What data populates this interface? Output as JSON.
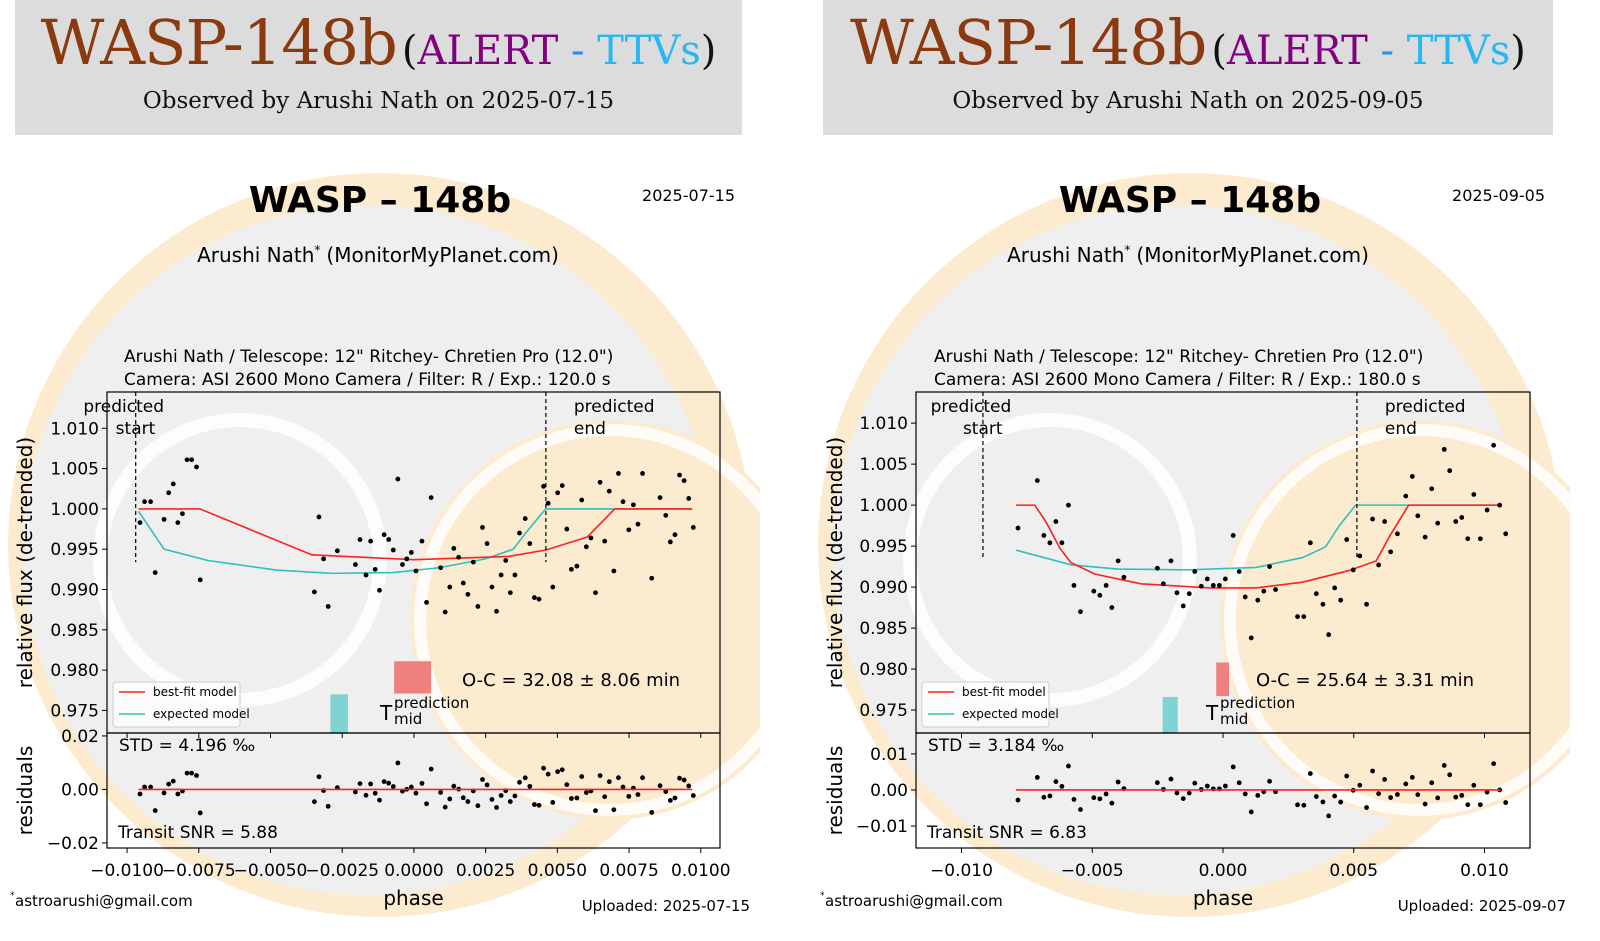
{
  "colors": {
    "best_fit": "#ff2020",
    "expected": "#2ebfbf",
    "prediction_bar": "#f08080",
    "tmid_bar": "#7fd3d3",
    "title_planet": "#8b3a0f",
    "title_alert": "#800080",
    "title_ttvs": "#29b6f6",
    "header_bg": "#dcdcdc",
    "watermark": "#fdebd0"
  },
  "panels": [
    {
      "header": {
        "planet": "WASP-148b",
        "open": "(",
        "alert": "ALERT",
        "dash": " - ",
        "ttvs": "TTVs",
        "close": ")",
        "observed": "Observed by Arushi Nath on 2025-07-15"
      }
    },
    {
      "header": {
        "planet": "WASP-148b",
        "open": "(",
        "alert": "ALERT",
        "dash": " - ",
        "ttvs": "TTVs",
        "close": ")",
        "observed": "Observed by Arushi Nath on 2025-09-05"
      }
    }
  ],
  "chart_data": [
    {
      "type": "scatter",
      "title": "WASP – 148b",
      "date": "2025-07-15",
      "observer": "Arushi Nath",
      "observer_mark": "*",
      "site": "(MonitorMyPlanet.com)",
      "info_line1": "Arushi Nath / Telescope: 12\" Ritchey- Chretien Pro (12.0\")",
      "info_line2": "Camera: ASI 2600 Mono Camera / Filter: R / Exp.: 120.0 s",
      "xlabel": "phase",
      "ylabel": "relative flux (de-trended)",
      "residual_ylabel": "residuals",
      "xlim": [
        -0.0107,
        0.01067
      ],
      "ylim": [
        0.9722,
        1.0145
      ],
      "residual_ylim": [
        -0.0219,
        0.0211
      ],
      "xticks": [
        -0.01,
        -0.0075,
        -0.005,
        -0.0025,
        0,
        0.0025,
        0.005,
        0.0075,
        0.01
      ],
      "xtick_labels": [
        "−0.0100",
        "−0.0075",
        "−0.0050",
        "−0.0025",
        "0.0000",
        "0.0025",
        "0.0050",
        "0.0075",
        "0.0100"
      ],
      "yticks": [
        0.975,
        0.98,
        0.985,
        0.99,
        0.995,
        1.0,
        1.005,
        1.01
      ],
      "ytick_labels": [
        "0.975",
        "0.980",
        "0.985",
        "0.990",
        "0.995",
        "1.000",
        "1.005",
        "1.010"
      ],
      "residual_yticks": [
        -0.02,
        0,
        0.02
      ],
      "residual_ytick_labels": [
        "−0.02",
        "0.00",
        "0.02"
      ],
      "predicted_start": -0.0097,
      "predicted_end": 0.0046,
      "predicted_word": "predicted",
      "start_word": "start",
      "end_word": "end",
      "legend": {
        "best_fit": "best-fit model",
        "expected": "expected model",
        "placement": "lower-left"
      },
      "oc_text": "O-C = 32.08 ± 8.06 min",
      "tmid_T": "T",
      "tmid_sup": "prediction",
      "tmid_sub": "mid",
      "std_text": "STD = 4.196 ‰",
      "snr_text": "Transit SNR = 5.88",
      "email_mark": "*",
      "email": "astroarushi@gmail.com",
      "uploaded": "Uploaded: 2025-07-15",
      "prediction_bar": {
        "phase": [
          -0.00069,
          0.0006
        ],
        "flux": [
          0.9771,
          0.9811
        ]
      },
      "tmid_bar": {
        "phase": [
          -0.00291,
          -0.0023
        ],
        "flux": [
          0.9722,
          0.977
        ]
      },
      "best_fit": [
        [
          -0.0096,
          1.0
        ],
        [
          -0.00746,
          1.0
        ],
        [
          -0.00356,
          0.9943
        ],
        [
          0.0,
          0.9937
        ],
        [
          0.0033,
          0.9941
        ],
        [
          0.0046,
          0.9949
        ],
        [
          0.00604,
          0.9965
        ],
        [
          0.007,
          1.0
        ],
        [
          0.0097,
          1.0
        ]
      ],
      "expected": [
        [
          -0.0096,
          0.9997
        ],
        [
          -0.00871,
          0.995
        ],
        [
          -0.00718,
          0.9936
        ],
        [
          -0.00476,
          0.9924
        ],
        [
          -0.00283,
          0.992
        ],
        [
          -0.00073,
          0.9921
        ],
        [
          0.00088,
          0.9927
        ],
        [
          0.00249,
          0.9938
        ],
        [
          0.00346,
          0.995
        ],
        [
          0.00394,
          0.9972
        ],
        [
          0.00459,
          1.0
        ],
        [
          0.0097,
          1.0
        ]
      ],
      "points": [
        [
          -0.00955,
          0.9983
        ],
        [
          -0.00939,
          1.0009
        ],
        [
          -0.00918,
          1.0009
        ],
        [
          -0.00902,
          0.9921
        ],
        [
          -0.00871,
          0.9987
        ],
        [
          -0.00855,
          1.002
        ],
        [
          -0.00839,
          1.0031
        ],
        [
          -0.00823,
          0.9983
        ],
        [
          -0.00807,
          0.9994
        ],
        [
          -0.00791,
          1.0061
        ],
        [
          -0.00775,
          1.0061
        ],
        [
          -0.00758,
          1.0052
        ],
        [
          -0.00745,
          0.9912
        ],
        [
          -0.00347,
          0.9897
        ],
        [
          -0.00331,
          0.999
        ],
        [
          -0.00315,
          0.9938
        ],
        [
          -0.00299,
          0.9879
        ],
        [
          -0.00267,
          0.9948
        ],
        [
          -0.00204,
          0.9931
        ],
        [
          -0.00188,
          0.9962
        ],
        [
          -0.00167,
          0.9918
        ],
        [
          -0.00151,
          0.996
        ],
        [
          -0.00135,
          0.9925
        ],
        [
          -0.0012,
          0.9899
        ],
        [
          -0.00104,
          0.9968
        ],
        [
          -0.00088,
          0.9962
        ],
        [
          -0.00072,
          0.9949
        ],
        [
          -0.00056,
          1.0037
        ],
        [
          -0.0004,
          0.9931
        ],
        [
          -0.00025,
          0.9938
        ],
        [
          -9e-05,
          0.9946
        ],
        [
          7e-05,
          0.9923
        ],
        [
          0.00028,
          0.996
        ],
        [
          0.00044,
          0.9884
        ],
        [
          0.0006,
          1.0014
        ],
        [
          0.00093,
          0.9927
        ],
        [
          0.00109,
          0.9872
        ],
        [
          0.00125,
          0.9903
        ],
        [
          0.00139,
          0.9951
        ],
        [
          0.00156,
          0.994
        ],
        [
          0.00172,
          0.9908
        ],
        [
          0.00188,
          0.9894
        ],
        [
          0.00207,
          0.9934
        ],
        [
          0.00223,
          0.9879
        ],
        [
          0.00239,
          0.9977
        ],
        [
          0.00255,
          0.9957
        ],
        [
          0.00272,
          0.9903
        ],
        [
          0.00288,
          0.9873
        ],
        [
          0.00304,
          0.9918
        ],
        [
          0.0032,
          0.9936
        ],
        [
          0.00336,
          0.9896
        ],
        [
          0.00352,
          0.9918
        ],
        [
          0.00368,
          0.997
        ],
        [
          0.00388,
          0.9988
        ],
        [
          0.00404,
          0.9957
        ],
        [
          0.0042,
          0.989
        ],
        [
          0.00436,
          0.9888
        ],
        [
          0.00452,
          1.0028
        ],
        [
          0.00468,
          1.0007
        ],
        [
          0.00484,
          0.9903
        ],
        [
          0.00501,
          1.002
        ],
        [
          0.00517,
          1.0029
        ],
        [
          0.00533,
          0.9975
        ],
        [
          0.00549,
          0.9925
        ],
        [
          0.00568,
          0.9929
        ],
        [
          0.00585,
          1.0011
        ],
        [
          0.00601,
          0.9953
        ],
        [
          0.00617,
          0.9964
        ],
        [
          0.00633,
          0.9896
        ],
        [
          0.00649,
          1.0033
        ],
        [
          0.00665,
          0.996
        ],
        [
          0.00681,
          1.0022
        ],
        [
          0.00697,
          0.9923
        ],
        [
          0.00713,
          1.0044
        ],
        [
          0.00729,
          1.0009
        ],
        [
          0.00749,
          0.9974
        ],
        [
          0.00765,
          1.0005
        ],
        [
          0.00781,
          0.9981
        ],
        [
          0.00797,
          1.0044
        ],
        [
          0.00829,
          0.9914
        ],
        [
          0.00858,
          1.0014
        ],
        [
          0.00878,
          0.9992
        ],
        [
          0.00894,
          0.9959
        ],
        [
          0.0091,
          0.9968
        ],
        [
          0.00926,
          1.0042
        ],
        [
          0.00942,
          1.0035
        ],
        [
          0.00958,
          1.0013
        ],
        [
          0.00974,
          0.9977
        ]
      ]
    },
    {
      "type": "scatter",
      "title": "WASP – 148b",
      "date": "2025-09-05",
      "observer": "Arushi Nath",
      "observer_mark": "*",
      "site": "(MonitorMyPlanet.com)",
      "info_line1": "Arushi Nath / Telescope: 12\" Ritchey- Chretien Pro (12.0\")",
      "info_line2": "Camera: ASI 2600 Mono Camera / Filter: R / Exp.: 180.0 s",
      "xlabel": "phase",
      "ylabel": "relative flux (de-trended)",
      "residual_ylabel": "residuals",
      "xlim": [
        -0.01174,
        0.01174
      ],
      "ylim": [
        0.9722,
        1.0138
      ],
      "residual_ylim": [
        -0.0161,
        0.0158
      ],
      "xticks": [
        -0.01,
        -0.005,
        0,
        0.005,
        0.01
      ],
      "xtick_labels": [
        "−0.010",
        "−0.005",
        "0.000",
        "0.005",
        "0.010"
      ],
      "yticks": [
        0.975,
        0.98,
        0.985,
        0.99,
        0.995,
        1.0,
        1.005,
        1.01
      ],
      "ytick_labels": [
        "0.975",
        "0.980",
        "0.985",
        "0.990",
        "0.995",
        "1.000",
        "1.005",
        "1.010"
      ],
      "residual_yticks": [
        -0.01,
        0,
        0.01
      ],
      "residual_ytick_labels": [
        "−0.01",
        "0.00",
        "0.01"
      ],
      "predicted_start": -0.00918,
      "predicted_end": 0.00512,
      "predicted_word": "predicted",
      "start_word": "start",
      "end_word": "end",
      "legend": {
        "best_fit": "best-fit model",
        "expected": "expected model",
        "placement": "lower-left"
      },
      "oc_text": "O-C = 25.64 ± 3.31 min",
      "tmid_T": "T",
      "tmid_sup": "prediction",
      "tmid_sub": "mid",
      "std_text": "STD = 3.184 ‰",
      "snr_text": "Transit SNR = 6.83",
      "email_mark": "*",
      "email": "astroarushi@gmail.com",
      "uploaded": "Uploaded: 2025-09-07",
      "prediction_bar": {
        "phase": [
          -0.00026,
          0.00023
        ],
        "flux": [
          0.9767,
          0.9808
        ]
      },
      "tmid_bar": {
        "phase": [
          -0.00231,
          -0.00173
        ],
        "flux": [
          0.9722,
          0.9766
        ]
      },
      "best_fit": [
        [
          -0.00791,
          1.0
        ],
        [
          -0.0072,
          1.0
        ],
        [
          -0.00676,
          0.9979
        ],
        [
          -0.00623,
          0.9947
        ],
        [
          -0.00582,
          0.993
        ],
        [
          -0.00491,
          0.9916
        ],
        [
          -0.00314,
          0.9904
        ],
        [
          -0.00049,
          0.9899
        ],
        [
          0.00127,
          0.9899
        ],
        [
          0.00304,
          0.9906
        ],
        [
          0.0048,
          0.992
        ],
        [
          0.00586,
          0.9932
        ],
        [
          0.00639,
          0.9963
        ],
        [
          0.0071,
          1.0
        ],
        [
          0.01063,
          1.0
        ]
      ],
      "expected": [
        [
          -0.00791,
          0.9945
        ],
        [
          -0.00579,
          0.9927
        ],
        [
          -0.00402,
          0.9922
        ],
        [
          -0.00138,
          0.9921
        ],
        [
          0.00127,
          0.9924
        ],
        [
          0.00304,
          0.9936
        ],
        [
          0.00392,
          0.9949
        ],
        [
          0.00445,
          0.9975
        ],
        [
          0.00507,
          1.0
        ],
        [
          0.01063,
          1.0
        ]
      ],
      "points": [
        [
          -0.00784,
          0.9972
        ],
        [
          -0.0071,
          1.003
        ],
        [
          -0.00685,
          0.9963
        ],
        [
          -0.00662,
          0.9954
        ],
        [
          -0.00639,
          0.998
        ],
        [
          -0.00616,
          0.9954
        ],
        [
          -0.00591,
          1.0
        ],
        [
          -0.0057,
          0.9902
        ],
        [
          -0.00545,
          0.987
        ],
        [
          -0.00494,
          0.9895
        ],
        [
          -0.00471,
          0.989
        ],
        [
          -0.00447,
          0.9902
        ],
        [
          -0.00425,
          0.9875
        ],
        [
          -0.00401,
          0.9932
        ],
        [
          -0.00379,
          0.9912
        ],
        [
          -0.00251,
          0.9923
        ],
        [
          -0.00228,
          0.9904
        ],
        [
          -0.00199,
          0.9932
        ],
        [
          -0.00176,
          0.9893
        ],
        [
          -0.00152,
          0.9877
        ],
        [
          -0.00129,
          0.9892
        ],
        [
          -0.00108,
          0.9919
        ],
        [
          -0.00083,
          0.9901
        ],
        [
          -0.0006,
          0.991
        ],
        [
          -0.00037,
          0.9902
        ],
        [
          -0.00014,
          0.9902
        ],
        [
          9e-05,
          0.991
        ],
        [
          0.00039,
          0.9963
        ],
        [
          0.00062,
          0.9919
        ],
        [
          0.00085,
          0.9888
        ],
        [
          0.00108,
          0.9838
        ],
        [
          0.00133,
          0.9884
        ],
        [
          0.00156,
          0.9895
        ],
        [
          0.00178,
          0.9925
        ],
        [
          0.00201,
          0.9897
        ],
        [
          0.00285,
          0.9864
        ],
        [
          0.00309,
          0.9864
        ],
        [
          0.00334,
          0.9954
        ],
        [
          0.00357,
          0.9892
        ],
        [
          0.00382,
          0.9879
        ],
        [
          0.00404,
          0.9842
        ],
        [
          0.00427,
          0.9899
        ],
        [
          0.0045,
          0.9884
        ],
        [
          0.00473,
          0.9958
        ],
        [
          0.00498,
          0.9921
        ],
        [
          0.00523,
          0.9938
        ],
        [
          0.00549,
          0.9879
        ],
        [
          0.00572,
          0.9983
        ],
        [
          0.00595,
          0.9927
        ],
        [
          0.00618,
          0.998
        ],
        [
          0.00641,
          0.9943
        ],
        [
          0.00667,
          0.9965
        ],
        [
          0.00699,
          1.0011
        ],
        [
          0.00724,
          1.0035
        ],
        [
          0.00745,
          0.9987
        ],
        [
          0.00773,
          0.9961
        ],
        [
          0.00798,
          1.002
        ],
        [
          0.00821,
          0.9978
        ],
        [
          0.00846,
          1.0068
        ],
        [
          0.00867,
          1.0042
        ],
        [
          0.0089,
          0.998
        ],
        [
          0.00913,
          0.9985
        ],
        [
          0.00936,
          0.9959
        ],
        [
          0.00959,
          1.0013
        ],
        [
          0.00984,
          0.9959
        ],
        [
          0.0101,
          0.9994
        ],
        [
          0.01035,
          1.0073
        ],
        [
          0.01058,
          1.0
        ],
        [
          0.01081,
          0.9965
        ]
      ]
    }
  ]
}
